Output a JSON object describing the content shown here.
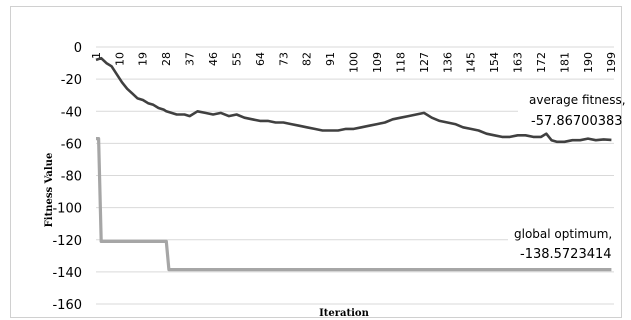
{
  "chart_data": {
    "type": "line",
    "title": "",
    "xlabel": "Iteration",
    "ylabel": "Fitness Value",
    "ylim": [
      -160,
      0
    ],
    "xlim": [
      1,
      200
    ],
    "grid": "horizontal",
    "yticks": [
      "0",
      "-20",
      "-40",
      "-60",
      "-80",
      "-100",
      "-120",
      "-140",
      "-160"
    ],
    "yticks_values": [
      0,
      -20,
      -40,
      -60,
      -80,
      -100,
      -120,
      -140,
      -160
    ],
    "xticks": [
      "1",
      "10",
      "19",
      "28",
      "37",
      "46",
      "55",
      "64",
      "73",
      "82",
      "91",
      "100",
      "109",
      "118",
      "127",
      "136",
      "145",
      "154",
      "163",
      "172",
      "181",
      "190",
      "199"
    ],
    "colors": {
      "average": "#404040",
      "global": "#a6a6a6",
      "grid": "#d9d9d9"
    },
    "series": [
      {
        "name": "average fitness",
        "x": [
          1,
          3,
          5,
          7,
          9,
          11,
          13,
          15,
          17,
          19,
          21,
          23,
          25,
          27,
          28,
          30,
          32,
          35,
          37,
          40,
          43,
          46,
          49,
          52,
          55,
          58,
          61,
          64,
          67,
          70,
          73,
          76,
          79,
          82,
          85,
          88,
          91,
          94,
          97,
          100,
          103,
          106,
          109,
          112,
          115,
          118,
          121,
          124,
          127,
          130,
          133,
          136,
          139,
          142,
          145,
          148,
          151,
          154,
          157,
          160,
          163,
          166,
          169,
          172,
          174,
          176,
          178,
          181,
          184,
          187,
          190,
          193,
          196,
          199
        ],
        "values": [
          -8,
          -7,
          -10,
          -12,
          -17,
          -22,
          -26,
          -29,
          -32,
          -33,
          -35,
          -36,
          -38,
          -39,
          -40,
          -41,
          -42,
          -42,
          -43,
          -40,
          -41,
          -42,
          -41,
          -43,
          -42,
          -44,
          -45,
          -46,
          -46,
          -47,
          -47,
          -48,
          -49,
          -50,
          -51,
          -52,
          -52,
          -52,
          -51,
          -51,
          -50,
          -49,
          -48,
          -47,
          -45,
          -44,
          -43,
          -42,
          -41,
          -44,
          -46,
          -47,
          -48,
          -50,
          -51,
          -52,
          -54,
          -55,
          -56,
          -56,
          -55,
          -55,
          -56,
          -56,
          -54,
          -58,
          -59,
          -59,
          -58,
          -58,
          -57,
          -58,
          -57.5,
          -57.867
        ]
      },
      {
        "name": "global optimum",
        "x": [
          1,
          2,
          3,
          28,
          29,
          199
        ],
        "values": [
          -57,
          -57,
          -121,
          -121,
          -138.57,
          -138.57
        ]
      }
    ],
    "annotations": [
      {
        "label": "average fitness,",
        "value": "-57.86700383"
      },
      {
        "label": "global optimum,",
        "value": "-138.5723414"
      }
    ]
  }
}
